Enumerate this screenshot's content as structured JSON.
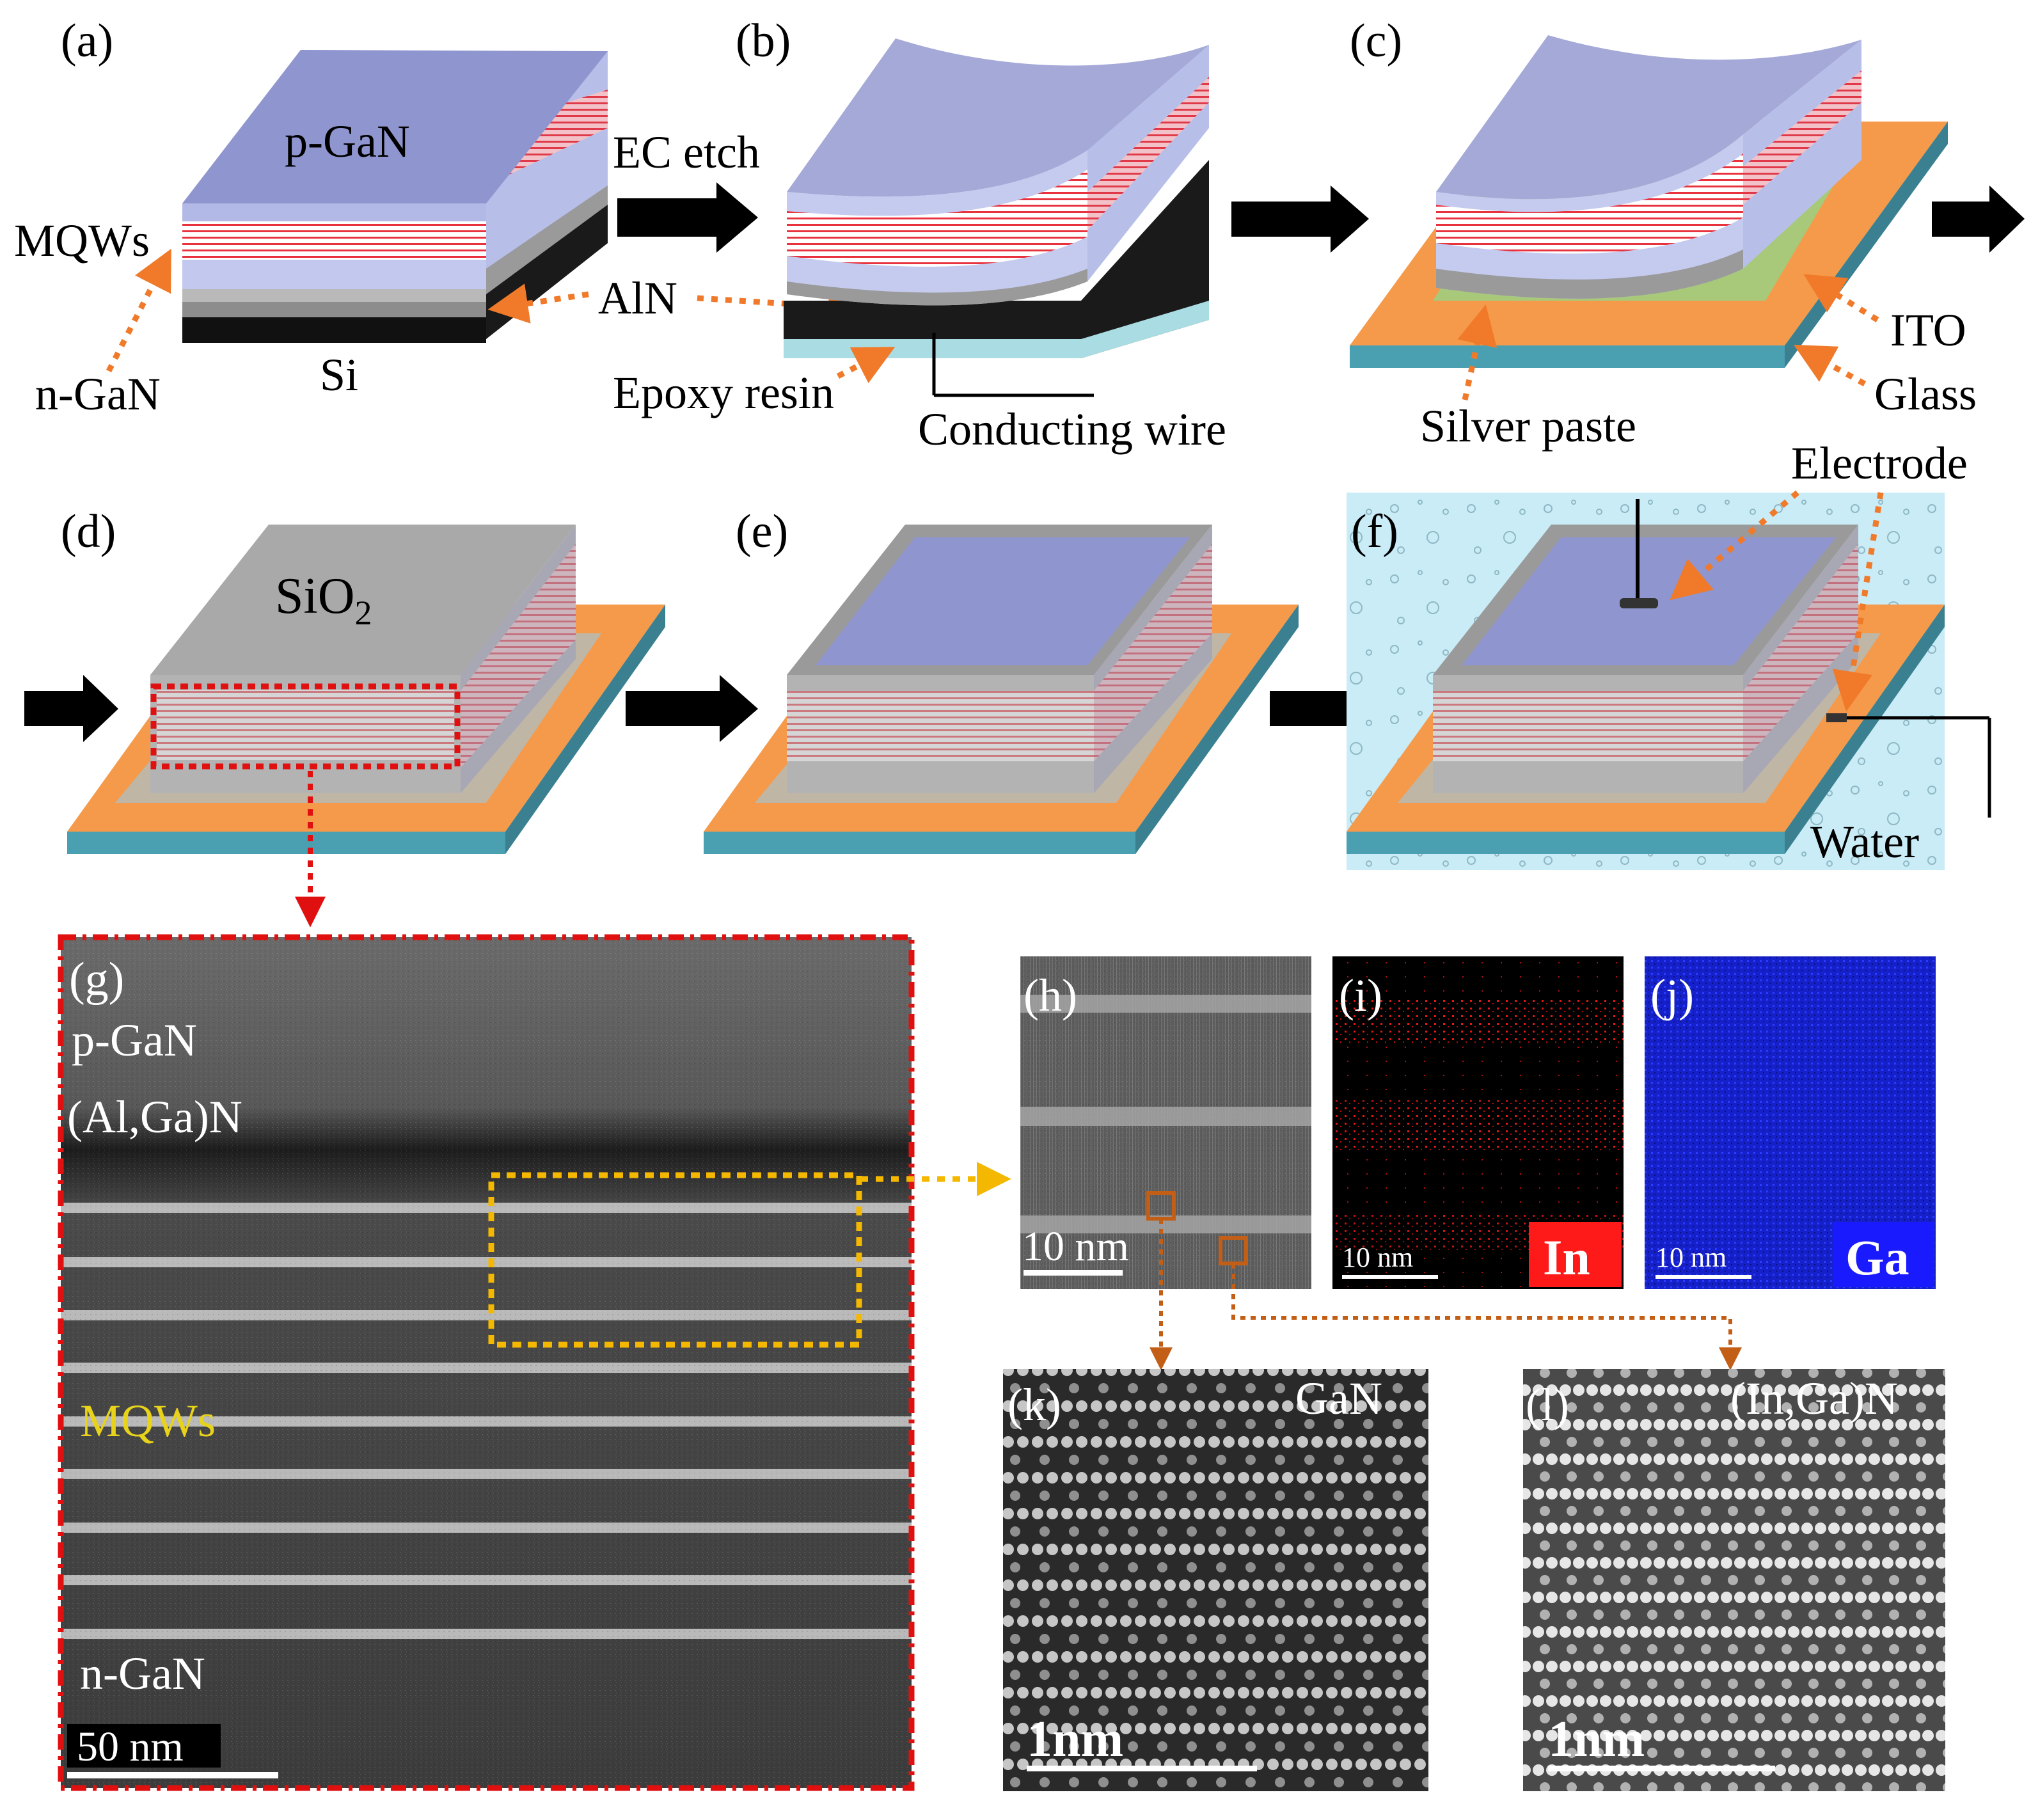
{
  "panels": {
    "a": "(a)",
    "b": "(b)",
    "c": "(c)",
    "d": "(d)",
    "e": "(e)",
    "f": "(f)",
    "g": "(g)",
    "h": "(h)",
    "i": "(i)",
    "j": "(j)",
    "k": "(k)",
    "l": "(l)"
  },
  "labels": {
    "p_gan": "p-GaN",
    "mqws": "MQWs",
    "n_gan": "n-GaN",
    "si": "Si",
    "aln": "AlN",
    "ec_etch": "EC etch",
    "epoxy_resin": "Epoxy resin",
    "conducting_wire": "Conducting wire",
    "ito": "ITO",
    "glass": "Glass",
    "silver_paste": "Silver paste",
    "electrode": "Electrode",
    "sio2_main": "SiO",
    "sio2_sub": "2",
    "water": "Water"
  },
  "tem": {
    "p_gan": "p-GaN",
    "algan": "(Al,Ga)N",
    "mqws": "MQWs",
    "n_gan": "n-GaN",
    "scale_g": "50 nm",
    "scale_h": "10 nm",
    "scale_i": "10 nm",
    "scale_j": "10 nm",
    "badge_in": "In",
    "badge_ga": "Ga",
    "k_title": "GaN",
    "l_title": "(In,Ga)N",
    "scale_k": "1nm",
    "scale_l": "1nm"
  },
  "colors": {
    "pgan": "#9fa6d6",
    "red_border": "#e01010",
    "orange_arrow": "#f07a2a",
    "yellow_box": "#f5b800",
    "in_red": "#ff1a1a",
    "ga_blue": "#1a1aff",
    "orange_substrate": "#f59a4a",
    "teal_glass": "#4a9fb0"
  }
}
